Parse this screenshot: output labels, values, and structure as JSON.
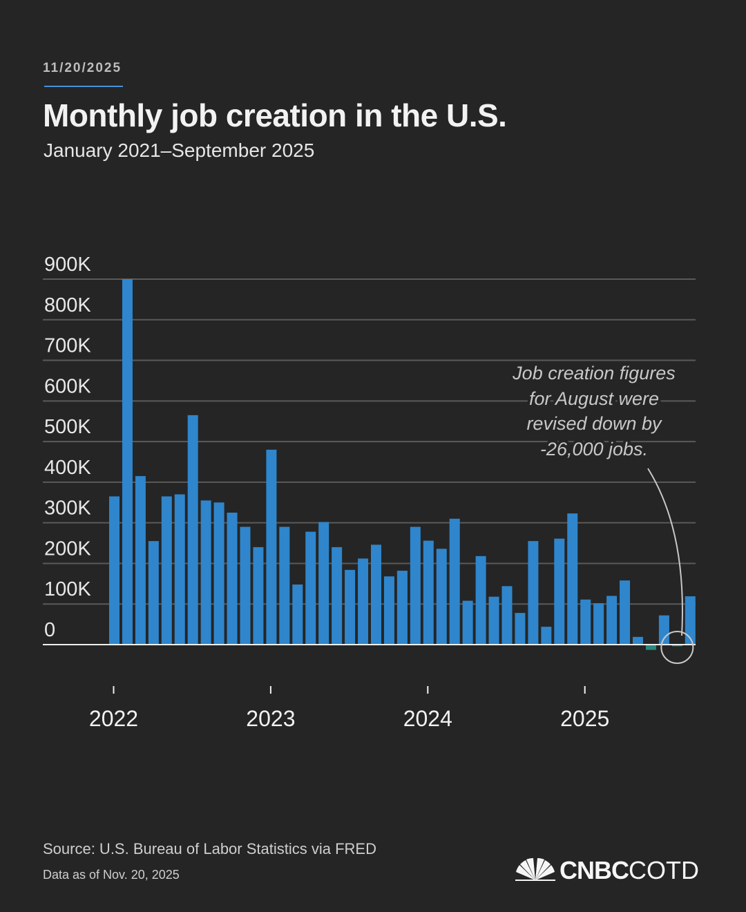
{
  "header": {
    "date": "11/20/2025",
    "title": "Monthly job creation in the U.S.",
    "subtitle": "January 2021–September 2025"
  },
  "colors": {
    "background": "#252525",
    "bar_positive": "#2f86cc",
    "bar_negative": "#2a8a7e",
    "gridline": "#5a5a5a",
    "axis": "#e8e8e8",
    "annotation": "#c8c8c8"
  },
  "chart_data": {
    "type": "bar",
    "title": "Monthly job creation in the U.S.",
    "subtitle": "January 2021–September 2025",
    "xlabel": "",
    "ylabel": "",
    "ylim": [
      0,
      900000
    ],
    "y_ticks": [
      {
        "value": 900000,
        "label": "900K"
      },
      {
        "value": 800000,
        "label": "800K"
      },
      {
        "value": 700000,
        "label": "700K"
      },
      {
        "value": 600000,
        "label": "600K"
      },
      {
        "value": 500000,
        "label": "500K"
      },
      {
        "value": 400000,
        "label": "400K"
      },
      {
        "value": 300000,
        "label": "300K"
      },
      {
        "value": 200000,
        "label": "200K"
      },
      {
        "value": 100000,
        "label": "100K"
      },
      {
        "value": 0,
        "label": "0"
      }
    ],
    "x_ticks": [
      {
        "index": 0,
        "label": "2022"
      },
      {
        "index": 12,
        "label": "2023"
      },
      {
        "index": 24,
        "label": "2024"
      },
      {
        "index": 36,
        "label": "2025"
      }
    ],
    "series": [
      {
        "name": "Monthly job creation",
        "values": [
          365000,
          900000,
          415000,
          255000,
          365000,
          370000,
          565000,
          355000,
          350000,
          325000,
          290000,
          240000,
          480000,
          290000,
          148000,
          278000,
          302000,
          240000,
          184000,
          212000,
          246000,
          168000,
          182000,
          290000,
          256000,
          236000,
          310000,
          108000,
          218000,
          118000,
          144000,
          78000,
          255000,
          44000,
          261000,
          323000,
          111000,
          102000,
          120000,
          158000,
          19000,
          -13000,
          72000,
          -4000,
          119000
        ]
      }
    ],
    "annotation": {
      "text": [
        "Job creation figures",
        "for August were",
        "revised down by",
        "-26,000 jobs."
      ],
      "target_index": 43
    }
  },
  "footer": {
    "source": "Source: U.S. Bureau of Labor Statistics via FRED",
    "as_of": "Data as of Nov. 20, 2025",
    "logo_bold": "CNBC",
    "logo_light": "COTD",
    "logo_icon": "peacock-icon"
  }
}
